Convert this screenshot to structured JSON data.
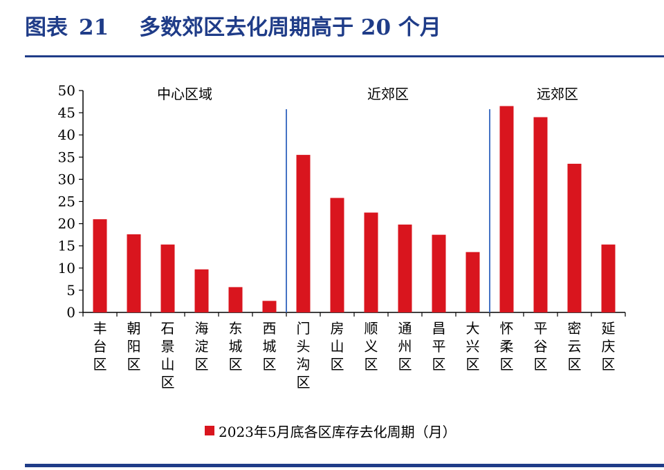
{
  "header": {
    "figure_label": "图表",
    "figure_number": "21",
    "title": "多数郊区去化周期高于 20 个月"
  },
  "colors": {
    "brand": "#1f3c88",
    "bar": "#d9151e",
    "axis": "#000000",
    "divider": "#4472c4"
  },
  "chart_data": {
    "type": "bar",
    "categories": [
      "丰台区",
      "朝阳区",
      "石景山区",
      "海淀区",
      "东城区",
      "西城区",
      "门头沟区",
      "房山区",
      "顺义区",
      "通州区",
      "昌平区",
      "大兴区",
      "怀柔区",
      "平谷区",
      "密云区",
      "延庆区"
    ],
    "series": [
      {
        "name": "2023年5月底各区库存去化周期（月）",
        "values": [
          21,
          17.6,
          15.3,
          9.7,
          5.7,
          2.6,
          35.5,
          25.8,
          22.5,
          19.8,
          17.5,
          13.6,
          46.5,
          44,
          33.5,
          15.3
        ]
      }
    ],
    "ylim": [
      0,
      50
    ],
    "yticks": [
      0,
      5,
      10,
      15,
      20,
      25,
      30,
      35,
      40,
      45,
      50
    ],
    "grid": false,
    "legend_position": "bottom",
    "groups": [
      {
        "label": "中心区域",
        "start": 0,
        "end": 5
      },
      {
        "label": "近郊区",
        "start": 6,
        "end": 11
      },
      {
        "label": "远郊区",
        "start": 12,
        "end": 15
      }
    ]
  }
}
